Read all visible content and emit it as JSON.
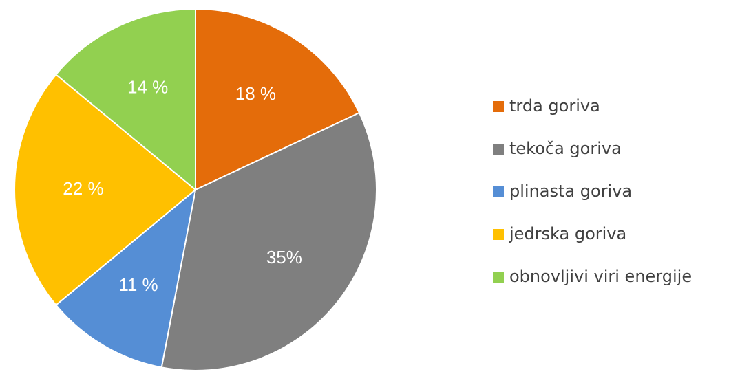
{
  "chart_data": {
    "type": "pie",
    "categories": [
      "trda goriva",
      "tekoča goriva",
      "plinasta goriva",
      "jedrska goriva",
      "obnovljivi viri energije"
    ],
    "values": [
      18,
      35,
      11,
      22,
      14
    ],
    "value_labels": [
      "18 %",
      "35%",
      "11 %",
      "22 %",
      "14 %"
    ],
    "colors": [
      "#e46c0a",
      "#7f7f7f",
      "#558ed5",
      "#ffc000",
      "#92d050"
    ],
    "legend": "right"
  }
}
